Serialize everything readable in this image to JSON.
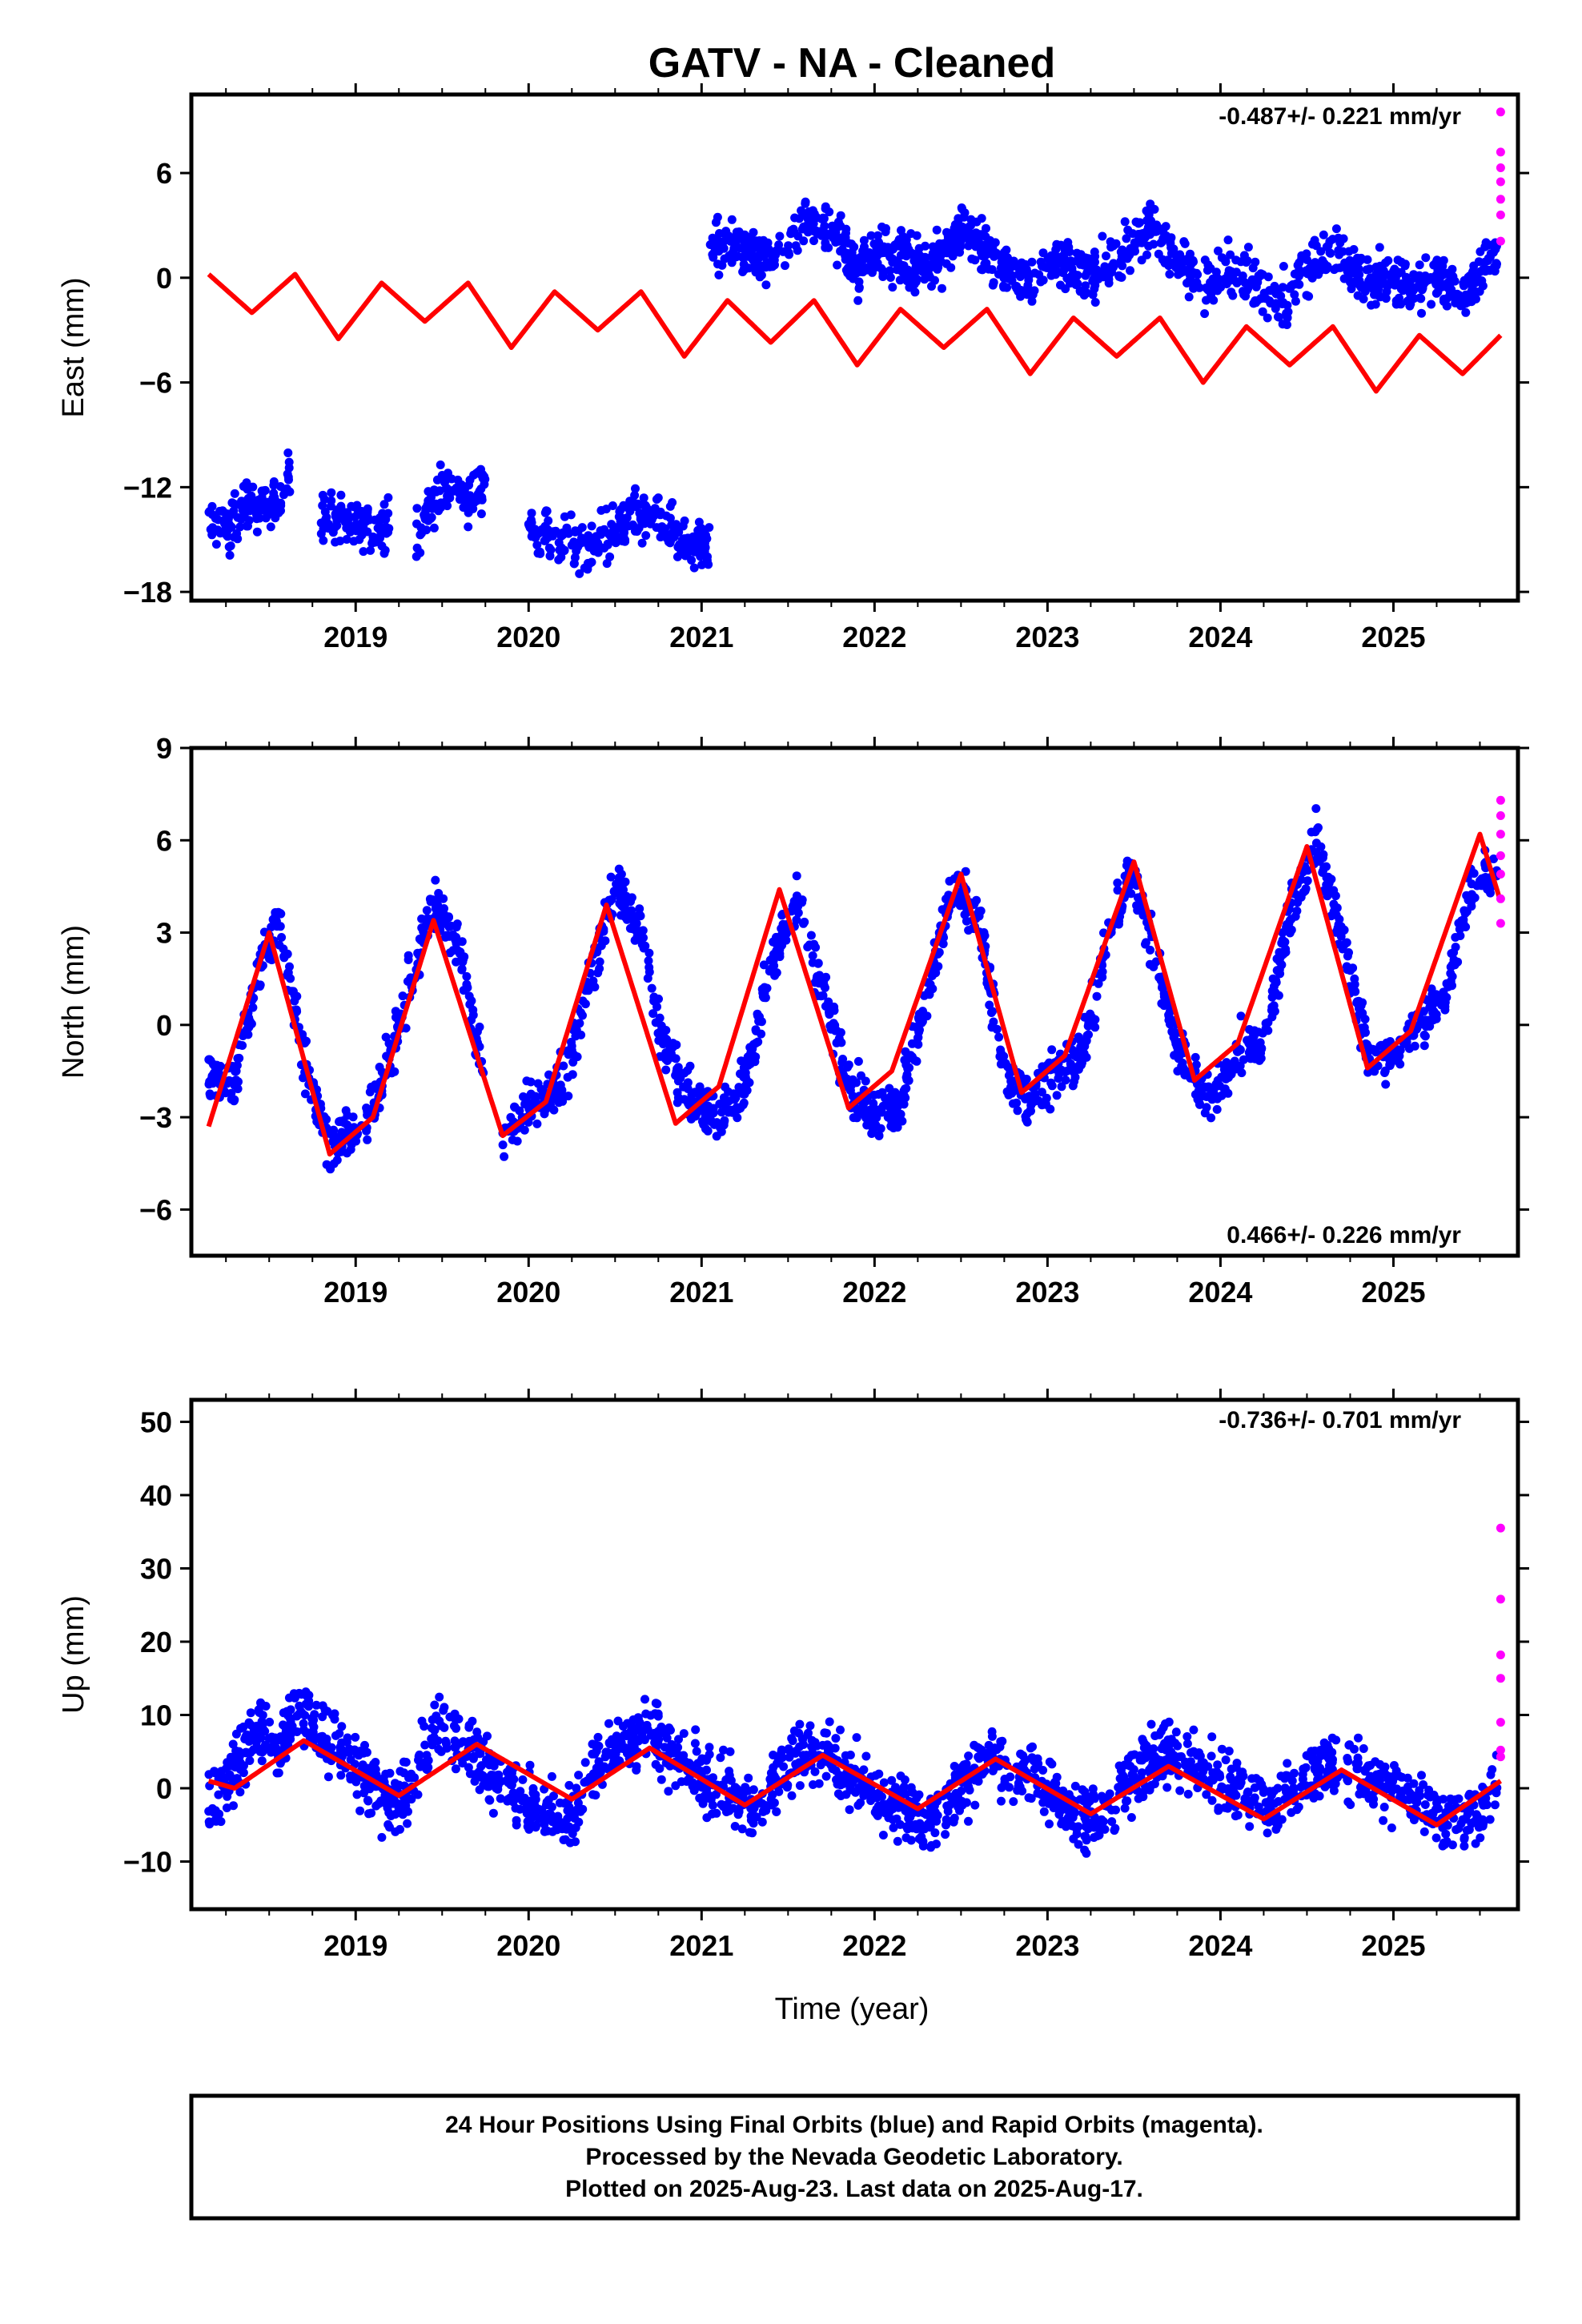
{
  "title": "GATV  - NA - Cleaned",
  "footer": {
    "line1": "24 Hour Positions Using Final Orbits (blue) and Rapid Orbits (magenta).",
    "line2": "Processed by the Nevada Geodetic Laboratory.",
    "line3": "Plotted on 2025-Aug-23. Last data on 2025-Aug-17."
  },
  "colors": {
    "final": "#0000ff",
    "rapid": "#ff00ff",
    "model": "#ff0000"
  },
  "chart_data": [
    {
      "type": "scatter",
      "xlabel": "",
      "ylabel": "East (mm)",
      "rate": "-0.487+/- 0.221 mm/yr",
      "xlim": [
        2018.05,
        2025.72
      ],
      "ylim": [
        -18.5,
        10.5
      ],
      "yticks": [
        6,
        0,
        -6,
        -12,
        -18
      ],
      "xticks": [
        2019,
        2020,
        2021,
        2022,
        2023,
        2024,
        2025
      ],
      "series": [
        {
          "role": "final",
          "segments": [
            {
              "x": [
                2018.15,
                2018.25,
                2018.35,
                2018.45,
                2018.55,
                2018.62
              ],
              "y": [
                -14.0,
                -14.5,
                -13.5,
                -13.0,
                -12.5,
                -11.5
              ]
            },
            {
              "x": [
                2018.8,
                2018.9,
                2019.0,
                2019.1,
                2019.2
              ],
              "y": [
                -13.5,
                -14.0,
                -13.8,
                -14.5,
                -14.0
              ]
            },
            {
              "x": [
                2019.35,
                2019.45,
                2019.55,
                2019.65,
                2019.75
              ],
              "y": [
                -14.5,
                -13.0,
                -12.0,
                -12.5,
                -11.5
              ]
            },
            {
              "x": [
                2020.0,
                2020.15,
                2020.3,
                2020.45,
                2020.6,
                2020.75,
                2020.9,
                2021.05
              ],
              "y": [
                -14.5,
                -15.0,
                -15.5,
                -15.0,
                -13.5,
                -14.0,
                -15.0,
                -15.5
              ]
            },
            {
              "x": [
                2021.05,
                2021.2,
                2021.4,
                2021.6,
                2021.75,
                2021.9,
                2022.05,
                2022.2,
                2022.35,
                2022.5,
                2022.6,
                2022.75,
                2022.9,
                2023.05,
                2023.2,
                2023.35,
                2023.5,
                2023.6,
                2023.75,
                2023.9,
                2024.05,
                2024.2,
                2024.35,
                2024.5,
                2024.65,
                2024.8,
                2024.95,
                2025.1,
                2025.25,
                2025.4,
                2025.6
              ],
              "y": [
                2.0,
                1.5,
                1.0,
                3.5,
                2.5,
                0.5,
                1.5,
                1.0,
                0.5,
                3.0,
                2.0,
                0.5,
                0.0,
                1.0,
                0.0,
                0.5,
                2.0,
                3.0,
                1.0,
                -0.5,
                0.5,
                -0.5,
                -1.5,
                0.5,
                2.0,
                0.0,
                0.0,
                -0.5,
                0.0,
                -1.0,
                1.5
              ]
            }
          ]
        },
        {
          "role": "rapid",
          "x": [
            2025.62,
            2025.62,
            2025.62,
            2025.62,
            2025.62,
            2025.62,
            2025.62
          ],
          "y": [
            9.5,
            7.2,
            6.3,
            5.5,
            4.5,
            3.6,
            2.1
          ]
        },
        {
          "role": "model",
          "x": [
            2018.15,
            2018.4,
            2018.65,
            2018.9,
            2019.15,
            2019.4,
            2019.65,
            2019.9,
            2020.15,
            2020.4,
            2020.65,
            2020.9,
            2021.15,
            2021.4,
            2021.65,
            2021.9,
            2022.15,
            2022.4,
            2022.65,
            2022.9,
            2023.15,
            2023.4,
            2023.65,
            2023.9,
            2024.15,
            2024.4,
            2024.65,
            2024.9,
            2025.15,
            2025.4,
            2025.62
          ],
          "y": [
            0.2,
            -2.0,
            0.2,
            -3.5,
            -0.3,
            -2.5,
            -0.3,
            -4.0,
            -0.8,
            -3.0,
            -0.8,
            -4.5,
            -1.3,
            -3.7,
            -1.3,
            -5.0,
            -1.8,
            -4.0,
            -1.8,
            -5.5,
            -2.3,
            -4.5,
            -2.3,
            -6.0,
            -2.8,
            -5.0,
            -2.8,
            -6.5,
            -3.3,
            -5.5,
            -3.3
          ]
        }
      ]
    },
    {
      "type": "scatter",
      "xlabel": "",
      "ylabel": "North (mm)",
      "rate": "0.466+/- 0.226 mm/yr",
      "xlim": [
        2018.05,
        2025.72
      ],
      "ylim": [
        -7.5,
        9.0
      ],
      "yticks": [
        9,
        6,
        3,
        0,
        -3,
        -6
      ],
      "xticks": [
        2019,
        2020,
        2021,
        2022,
        2023,
        2024,
        2025
      ],
      "series": [
        {
          "role": "final",
          "segments": [
            {
              "x": [
                2018.15,
                2018.3,
                2018.45,
                2018.55,
                2018.7,
                2018.85,
                2019.0,
                2019.15,
                2019.3,
                2019.45,
                2019.6,
                2019.75
              ],
              "y": [
                -1.5,
                -2.0,
                2.0,
                3.5,
                -1.0,
                -4.0,
                -3.5,
                -2.0,
                1.0,
                4.0,
                2.5,
                -2.0
              ]
            },
            {
              "x": [
                2019.85,
                2020.05,
                2020.2,
                2020.35,
                2020.5,
                2020.65,
                2020.8,
                2020.95,
                2021.1,
                2021.25,
                2021.4,
                2021.55,
                2021.7,
                2021.85,
                2022.0,
                2022.15,
                2022.3,
                2022.45,
                2022.6,
                2022.75,
                2022.9,
                2023.05,
                2023.2,
                2023.35,
                2023.5,
                2023.65,
                2023.8,
                2023.95,
                2024.1,
                2024.25,
                2024.4,
                2024.55,
                2024.7,
                2024.85,
                2025.0,
                2025.15,
                2025.3,
                2025.45,
                2025.6
              ],
              "y": [
                -3.5,
                -2.5,
                -2.0,
                1.5,
                4.5,
                3.0,
                -1.0,
                -2.5,
                -3.0,
                -2.0,
                2.0,
                4.0,
                1.0,
                -2.0,
                -3.0,
                -2.5,
                1.0,
                4.5,
                3.5,
                -1.5,
                -2.5,
                -1.5,
                -1.0,
                3.0,
                5.0,
                1.5,
                -1.5,
                -2.5,
                -1.0,
                -0.5,
                3.5,
                6.0,
                3.0,
                -1.0,
                -1.0,
                0.0,
                1.0,
                4.5,
                5.0
              ]
            }
          ]
        },
        {
          "role": "rapid",
          "x": [
            2025.62,
            2025.62,
            2025.62,
            2025.62,
            2025.62,
            2025.62,
            2025.62
          ],
          "y": [
            7.3,
            6.8,
            6.2,
            5.5,
            4.9,
            4.1,
            3.3
          ]
        },
        {
          "role": "model",
          "x": [
            2018.15,
            2018.5,
            2018.85,
            2019.1,
            2019.45,
            2019.85,
            2020.1,
            2020.45,
            2020.85,
            2021.1,
            2021.45,
            2021.85,
            2022.1,
            2022.5,
            2022.85,
            2023.1,
            2023.5,
            2023.85,
            2024.1,
            2024.5,
            2024.85,
            2025.1,
            2025.5,
            2025.62
          ],
          "y": [
            -3.3,
            3.0,
            -4.2,
            -3.0,
            3.4,
            -3.6,
            -2.5,
            3.9,
            -3.2,
            -2.0,
            4.4,
            -2.7,
            -1.5,
            4.9,
            -2.2,
            -1.0,
            5.3,
            -1.8,
            -0.6,
            5.8,
            -1.4,
            -0.2,
            6.2,
            4.0
          ]
        }
      ]
    },
    {
      "type": "scatter",
      "xlabel": "Time (year)",
      "ylabel": "Up (mm)",
      "rate": "-0.736+/- 0.701 mm/yr",
      "xlim": [
        2018.05,
        2025.72
      ],
      "ylim": [
        -16.5,
        53.0
      ],
      "yticks": [
        50,
        40,
        30,
        20,
        10,
        0,
        -10
      ],
      "xticks": [
        2019,
        2020,
        2021,
        2022,
        2023,
        2024,
        2025
      ],
      "series": [
        {
          "role": "final",
          "segments": [
            {
              "x": [
                2018.15,
                2018.3,
                2018.45,
                2018.55,
                2018.65,
                2018.8,
                2018.95,
                2019.1,
                2019.25,
                2019.45,
                2019.6,
                2019.75,
                2020.05,
                2020.25,
                2020.4,
                2020.55,
                2020.7,
                2020.85,
                2021.0,
                2021.15,
                2021.3,
                2021.45,
                2021.6,
                2021.75,
                2021.9,
                2022.05,
                2022.2,
                2022.35,
                2022.5,
                2022.65,
                2022.8,
                2022.95,
                2023.1,
                2023.25,
                2023.4,
                2023.55,
                2023.7,
                2023.85,
                2024.0,
                2024.15,
                2024.3,
                2024.45,
                2024.6,
                2024.75,
                2024.9,
                2025.05,
                2025.2,
                2025.35,
                2025.5,
                2025.6
              ],
              "y": [
                -2.0,
                3.0,
                8.0,
                5.0,
                10.0,
                8.0,
                4.0,
                0.0,
                -3.0,
                8.0,
                6.0,
                3.0,
                -3.0,
                -4.0,
                4.0,
                6.0,
                8.0,
                5.0,
                2.0,
                -1.0,
                -3.0,
                2.0,
                6.0,
                4.0,
                1.0,
                -2.0,
                -3.0,
                -4.0,
                0.0,
                4.0,
                3.0,
                0.0,
                -2.0,
                -4.0,
                -1.0,
                3.0,
                5.0,
                4.0,
                1.0,
                -1.0,
                -3.0,
                1.0,
                3.0,
                3.0,
                1.0,
                -1.0,
                -3.0,
                -5.0,
                -3.0,
                0.0
              ]
            }
          ]
        },
        {
          "role": "rapid",
          "x": [
            2025.62,
            2025.62,
            2025.62,
            2025.62,
            2025.62,
            2025.62,
            2025.62
          ],
          "y": [
            35.5,
            25.8,
            18.2,
            15.0,
            9.0,
            5.2,
            4.3
          ]
        },
        {
          "role": "model",
          "x": [
            2018.15,
            2018.3,
            2018.7,
            2019.25,
            2019.7,
            2020.25,
            2020.7,
            2021.25,
            2021.7,
            2022.25,
            2022.7,
            2023.25,
            2023.7,
            2024.25,
            2024.7,
            2025.25,
            2025.62
          ],
          "y": [
            1.0,
            0.0,
            6.5,
            -1.0,
            6.0,
            -1.5,
            5.5,
            -2.3,
            4.5,
            -2.8,
            4.0,
            -3.5,
            3.0,
            -4.2,
            2.5,
            -5.0,
            1.0
          ]
        }
      ]
    }
  ]
}
